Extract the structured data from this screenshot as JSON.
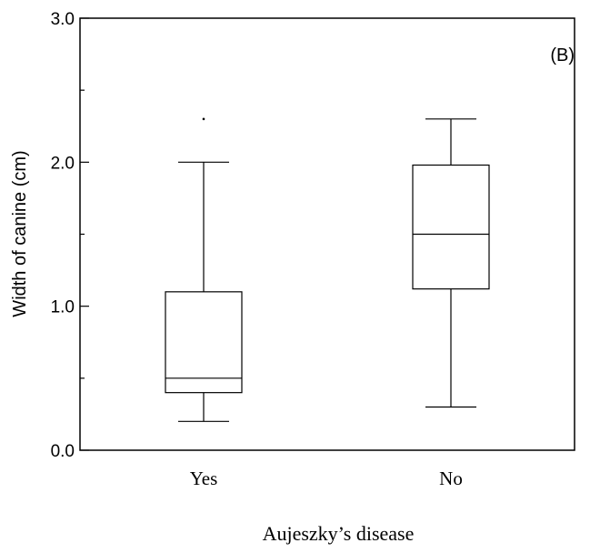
{
  "chart_data": {
    "type": "box",
    "panel_label": "(B)",
    "xlabel": "Aujeszky’s disease",
    "ylabel": "Width of canine (cm)",
    "ylim": [
      0.0,
      3.0
    ],
    "yticks": [
      {
        "value": 0.0,
        "label": "0.0"
      },
      {
        "value": 1.0,
        "label": "1.0"
      },
      {
        "value": 2.0,
        "label": "2.0"
      },
      {
        "value": 3.0,
        "label": "3.0"
      }
    ],
    "yminor_ticks": [
      0.5,
      1.5,
      2.5
    ],
    "categories": [
      "Yes",
      "No"
    ],
    "boxes": [
      {
        "category": "Yes",
        "whisker_low": 0.2,
        "q1": 0.4,
        "median": 0.5,
        "q3": 1.1,
        "whisker_high": 2.0,
        "outliers": [
          2.3
        ]
      },
      {
        "category": "No",
        "whisker_low": 0.3,
        "q1": 1.12,
        "median": 1.5,
        "q3": 1.98,
        "whisker_high": 2.3,
        "outliers": []
      }
    ],
    "grid": false,
    "frame": "full box"
  }
}
